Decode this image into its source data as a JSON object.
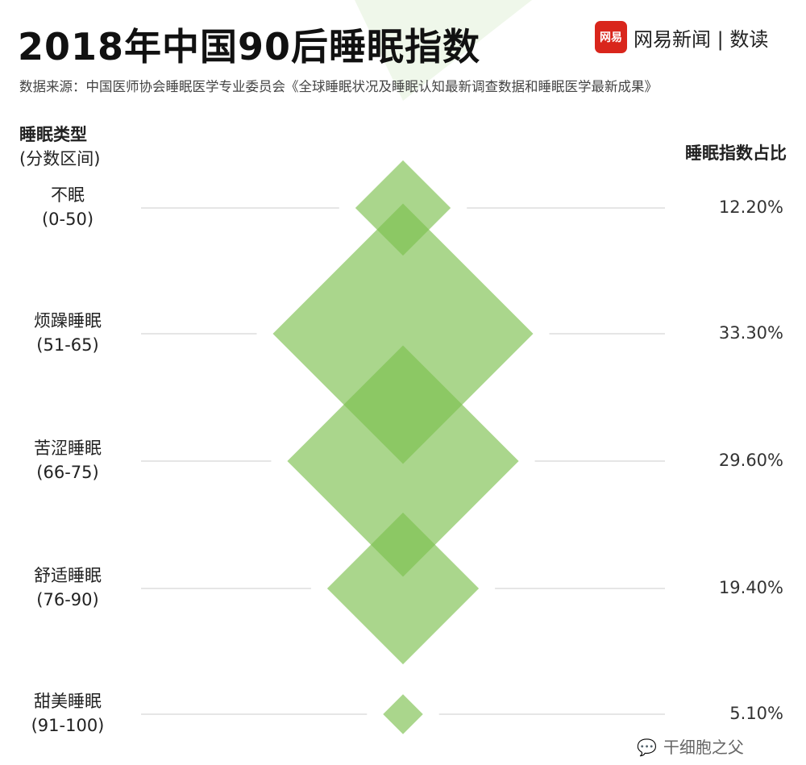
{
  "title": "2018年中国90后睡眠指数",
  "source": "数据来源：中国医师协会睡眠医学专业委员会《全球睡眠状况及睡眠认知最新调查数据和睡眠医学最新成果》",
  "brand": {
    "logo_text": "网易",
    "name": "网易新闻 | 数读"
  },
  "watermark": "干细胞之父",
  "colors": {
    "diamond": "#7cc04f",
    "line": "#dddddd"
  },
  "chart_data": {
    "type": "diamond",
    "left_header": "睡眠类型",
    "left_subheader": "(分数区间)",
    "right_header": "睡眠指数占比",
    "categories": [
      {
        "name": "不眠",
        "range": "(0-50)",
        "label": "12.20%"
      },
      {
        "name": "烦躁睡眠",
        "range": "(51-65)",
        "label": "33.30%"
      },
      {
        "name": "苦涩睡眠",
        "range": "(66-75)",
        "label": "29.60%"
      },
      {
        "name": "舒适睡眠",
        "range": "(76-90)",
        "label": "19.40%"
      },
      {
        "name": "甜美睡眠",
        "range": "(91-100)",
        "label": "5.10%"
      }
    ],
    "values": [
      12.2,
      33.3,
      29.6,
      19.4,
      5.1
    ],
    "unit": "%"
  }
}
